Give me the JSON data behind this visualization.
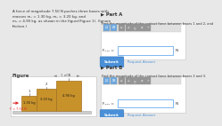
{
  "bg_color": "#e8e8e8",
  "left_bg": "#e8e8e8",
  "right_bg": "#e8e8e8",
  "white": "#ffffff",
  "box_color": "#c8922a",
  "box_edge": "#a07020",
  "floor_color": "#cccccc",
  "floor_edge": "#aaaaaa",
  "arrow_color": "#dd2222",
  "label_color": "#333333",
  "blue_btn": "#4a90d9",
  "blue_btn_dark": "#2a70b9",
  "panel_bg": "#f5f5f5",
  "panel_border": "#cccccc",
  "input_border": "#aaaaaa",
  "masses": [
    "1.30 kg",
    "3.20 kg",
    "4.90 kg"
  ],
  "force_label": "F = 7.50 N",
  "part_a_label": "Part A",
  "part_b_label": "Part B",
  "part_a_text": "Find the magnitude of the contact force between boxes 1 and 2, and",
  "part_b_text": "Find the magnitude of the contact force between boxes 2 and 3.",
  "fc12_label": "Fₑ₁₂ =",
  "fc23_label": "Fₑ₂₃ =",
  "n_label": "N",
  "submit_label": "Submit",
  "request_label": "Request Answer",
  "figure_label": "Figure",
  "page_label": "1 of 1",
  "problem_text": "A force of magnitude 7.50 N pushes three boxes with\nmasses m₁ = 1.30 kg, m₂ = 3.20 kg, and\nm₃ = 4.90 kg, as shown in the figure(Figure 1). (Ignore\nfriction.)",
  "icon_blue": "#5a9ee0",
  "icon_gray": "#888888",
  "toolbar_bg": "#e0e0e0"
}
